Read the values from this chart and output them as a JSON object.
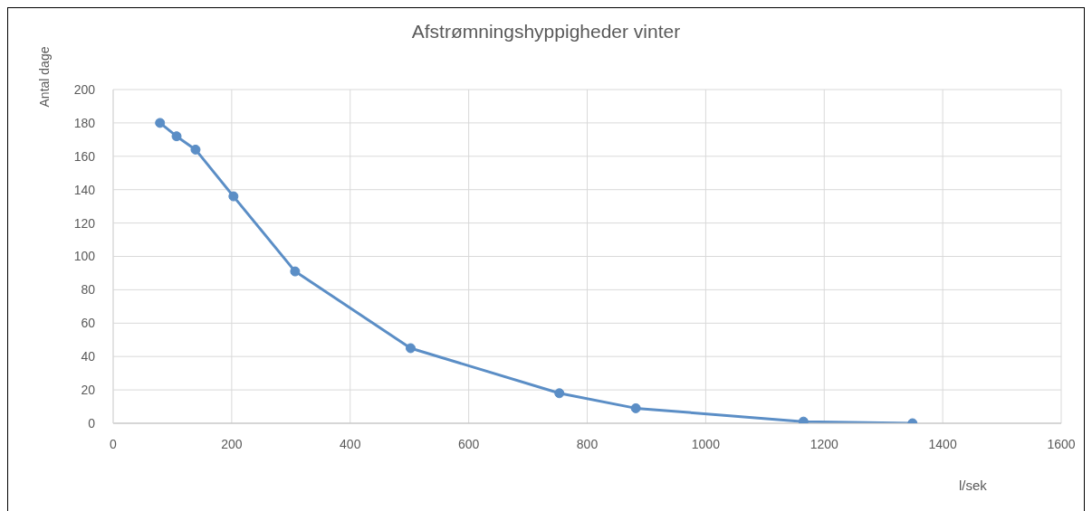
{
  "chart_data": {
    "type": "line",
    "title": "Afstrømningshyppigheder vinter",
    "xlabel": "l/sek",
    "ylabel": "Antal dage",
    "x": [
      79,
      107,
      139,
      203,
      307,
      502,
      753,
      882,
      1165,
      1349
    ],
    "values": [
      180,
      172,
      164,
      136,
      91,
      45,
      18,
      9,
      1,
      0
    ],
    "color": "#5b8ec6",
    "xlim": [
      0,
      1600
    ],
    "xticks": [
      0,
      200,
      400,
      600,
      800,
      1000,
      1200,
      1400,
      1600
    ],
    "ylim": [
      0,
      200
    ],
    "yticks": [
      0,
      20,
      40,
      60,
      80,
      100,
      120,
      140,
      160,
      180,
      200
    ],
    "grid": true,
    "marker": "circle",
    "line_style": "solid"
  }
}
